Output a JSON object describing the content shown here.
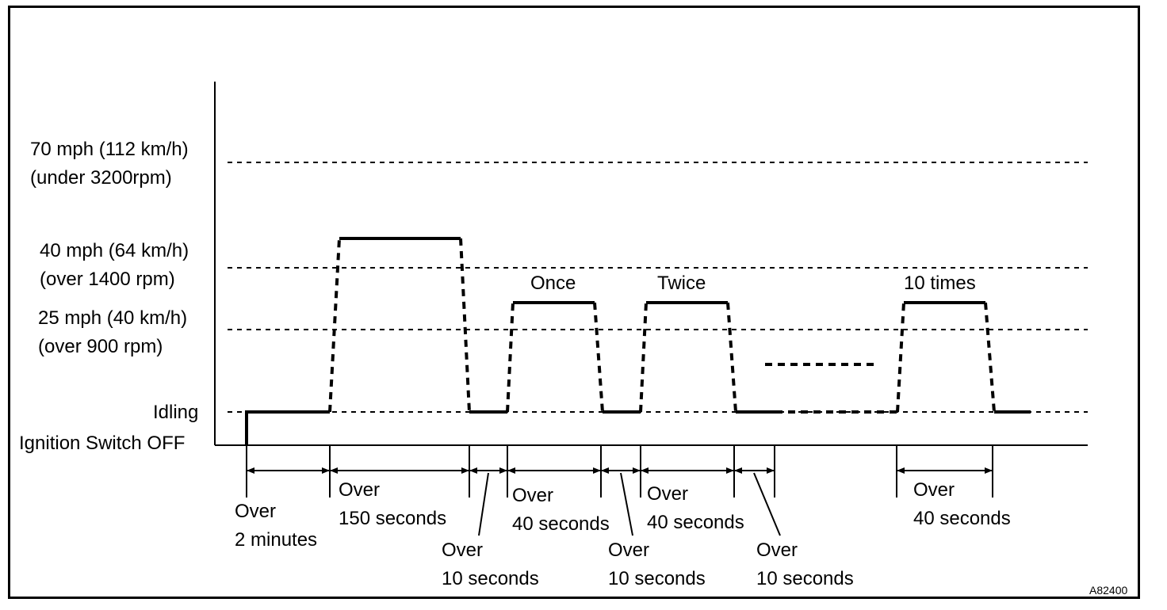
{
  "speed_levels": {
    "s70_line1": "70 mph (112 km/h)",
    "s70_line2": "(under 3200rpm)",
    "s40_line1": "40 mph (64 km/h)",
    "s40_line2": "(over 1400 rpm)",
    "s25_line1": "25 mph (40 km/h)",
    "s25_line2": "(over 900 rpm)",
    "idling": "Idling",
    "ignition_off": "Ignition Switch OFF"
  },
  "cycle_labels": {
    "once": "Once",
    "twice": "Twice",
    "ten_times": "10 times"
  },
  "durations": {
    "over": "Over",
    "two_minutes": "2 minutes",
    "s150": "150 seconds",
    "s40": "40 seconds",
    "s10": "10 seconds"
  },
  "figure_id": "A82400"
}
